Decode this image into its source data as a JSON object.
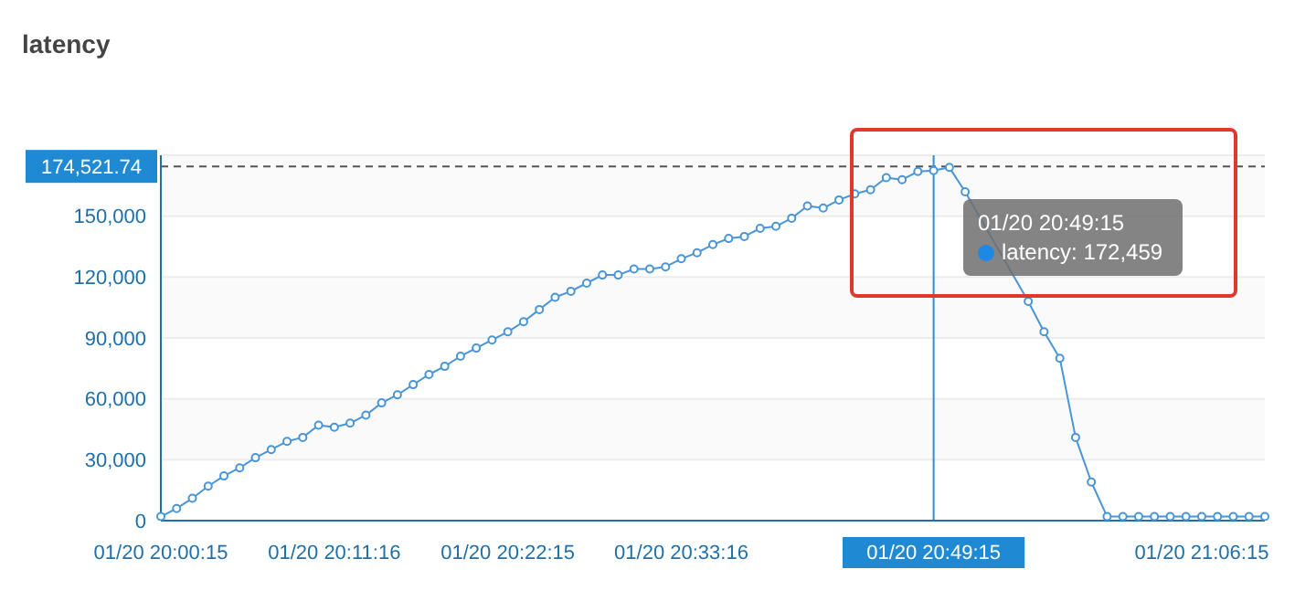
{
  "chart_data": {
    "type": "line",
    "title": "latency",
    "categories": [
      "01/20 20:00:15",
      null,
      null,
      null,
      null,
      null,
      null,
      null,
      null,
      null,
      null,
      "01/20 20:11:16",
      null,
      null,
      null,
      null,
      null,
      null,
      null,
      null,
      null,
      null,
      "01/20 20:22:15",
      null,
      null,
      null,
      null,
      null,
      null,
      null,
      null,
      null,
      null,
      "01/20 20:33:16",
      null,
      null,
      null,
      null,
      null,
      null,
      null,
      null,
      null,
      null,
      null,
      null,
      null,
      null,
      null,
      "01/20 20:49:15",
      null,
      null,
      null,
      null,
      null,
      null,
      null,
      null,
      null,
      null,
      null,
      null,
      null,
      null,
      null,
      null,
      "01/20 21:06:15",
      null,
      null,
      null,
      null
    ],
    "series": [
      {
        "color": "#4a95d6",
        "values": [
          2000,
          6000,
          11000,
          17000,
          22000,
          26000,
          31000,
          35000,
          39000,
          41000,
          47000,
          46000,
          48000,
          52000,
          58000,
          62000,
          67000,
          72000,
          76000,
          81000,
          85000,
          89000,
          93000,
          98000,
          104000,
          110000,
          113000,
          117000,
          121000,
          121000,
          124000,
          124000,
          125000,
          129000,
          132000,
          136000,
          139000,
          140000,
          144000,
          145000,
          149000,
          155000,
          154000,
          158000,
          161000,
          163000,
          169000,
          168000,
          172000,
          172459,
          174000,
          162000,
          null,
          null,
          null,
          108000,
          93000,
          80000,
          41000,
          19000,
          2000,
          2000,
          2000,
          2000,
          2000,
          2000,
          2000,
          2000,
          2000,
          2000,
          2000
        ]
      }
    ],
    "ylim": [
      0,
      180000
    ],
    "yticks": [
      0,
      {
        "value": 30000,
        "label": "30,000"
      },
      {
        "value": 60000,
        "label": "60,000"
      },
      {
        "value": 90000,
        "label": "90,000"
      },
      {
        "value": 120000,
        "label": "120,000"
      },
      {
        "value": 150000,
        "label": "150,000"
      }
    ],
    "grid": "y",
    "marker": "circle",
    "line_style": "solid",
    "ref_lines": [
      {
        "axis": "y",
        "value": 174521.74,
        "label": "174,521.74",
        "color": "#555555",
        "line_style": "dashed"
      },
      {
        "axis": "x",
        "value": "01/20 20:49:15",
        "color": "#2f8fd0",
        "line_style": "solid"
      }
    ],
    "annotations": [
      "01/20 20:49:15",
      "latency: 172,459"
    ]
  }
}
